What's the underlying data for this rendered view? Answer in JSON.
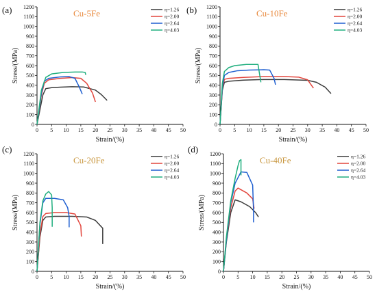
{
  "colors": {
    "eta_1_26": "#3a3a3a",
    "eta_2_00": "#e2453c",
    "eta_2_64": "#1f5fd0",
    "eta_4_03": "#1fae7e",
    "title_orange": "#e8873a",
    "title_tan": "#c8963e"
  },
  "chart_data": [
    {
      "type": "line",
      "panel_label": "(a)",
      "title": "Cu-5Fe",
      "title_color": "#e8873a",
      "xlabel": "Strain/(%)",
      "ylabel": "Stress/(MPa)",
      "xlim": [
        0,
        50
      ],
      "ylim": [
        0,
        1200
      ],
      "xticks": [
        0,
        5,
        10,
        15,
        20,
        25,
        30,
        35,
        40,
        45,
        50
      ],
      "yticks": [
        0,
        100,
        200,
        300,
        400,
        500,
        600,
        700,
        800,
        900,
        1000,
        1100,
        1200
      ],
      "legend": "top-right",
      "series": [
        {
          "name": "η=1.26",
          "color": "#3a3a3a",
          "x": [
            0,
            2,
            3,
            5,
            8,
            12,
            16,
            20,
            22,
            24
          ],
          "y": [
            0,
            300,
            365,
            375,
            380,
            385,
            382,
            350,
            305,
            245
          ]
        },
        {
          "name": "η=2.00",
          "color": "#e2453c",
          "x": [
            0,
            1.5,
            2.5,
            4,
            8,
            12,
            15,
            17,
            19,
            20
          ],
          "y": [
            0,
            300,
            420,
            455,
            470,
            478,
            470,
            420,
            320,
            230
          ]
        },
        {
          "name": "η=2.64",
          "color": "#1f5fd0",
          "x": [
            0,
            1.5,
            2.5,
            4,
            8,
            11,
            13,
            14.5,
            15.5
          ],
          "y": [
            0,
            320,
            440,
            470,
            485,
            488,
            470,
            380,
            310
          ]
        },
        {
          "name": "η=4.03",
          "color": "#1fae7e",
          "x": [
            0,
            1.5,
            3,
            5,
            9,
            13,
            15.5,
            16.5,
            16.7
          ],
          "y": [
            0,
            350,
            480,
            515,
            530,
            535,
            535,
            530,
            505
          ]
        }
      ]
    },
    {
      "type": "line",
      "panel_label": "(b)",
      "title": "Cu-10Fe",
      "title_color": "#e8873a",
      "xlabel": "Strain/(%)",
      "ylabel": "Stress/(MPa)",
      "xlim": [
        0,
        50
      ],
      "ylim": [
        0,
        1200
      ],
      "xticks": [
        0,
        5,
        10,
        15,
        20,
        25,
        30,
        35,
        40,
        45,
        50
      ],
      "yticks": [
        0,
        100,
        200,
        300,
        400,
        500,
        600,
        700,
        800,
        900,
        1000,
        1100,
        1200
      ],
      "legend": "top-right",
      "series": [
        {
          "name": "η=1.26",
          "color": "#3a3a3a",
          "x": [
            0,
            0.8,
            1.5,
            3,
            8,
            15,
            22,
            30,
            33,
            36,
            38
          ],
          "y": [
            0,
            350,
            430,
            440,
            452,
            458,
            458,
            450,
            430,
            380,
            315
          ]
        },
        {
          "name": "η=2.00",
          "color": "#e2453c",
          "x": [
            0,
            0.8,
            1.5,
            3,
            8,
            15,
            22,
            27,
            30,
            32
          ],
          "y": [
            0,
            370,
            460,
            470,
            480,
            488,
            488,
            482,
            455,
            370
          ]
        },
        {
          "name": "η=2.64",
          "color": "#1f5fd0",
          "x": [
            0,
            0.8,
            1.5,
            3,
            6,
            10,
            15,
            17,
            18.5,
            19
          ],
          "y": [
            0,
            380,
            500,
            530,
            548,
            555,
            558,
            555,
            470,
            405
          ]
        },
        {
          "name": "η=4.03",
          "color": "#1fae7e",
          "x": [
            0,
            0.8,
            1.5,
            3,
            5,
            9,
            13,
            14
          ],
          "y": [
            0,
            420,
            540,
            580,
            600,
            612,
            612,
            430
          ]
        }
      ]
    },
    {
      "type": "line",
      "panel_label": "(c)",
      "title": "Cu-20Fe",
      "title_color": "#c8963e",
      "xlabel": "Strain/(%)",
      "ylabel": "Stress/(MPa)",
      "xlim": [
        0,
        50
      ],
      "ylim": [
        0,
        1200
      ],
      "xticks": [
        0,
        5,
        10,
        15,
        20,
        25,
        30,
        35,
        40,
        45,
        50
      ],
      "yticks": [
        0,
        100,
        200,
        300,
        400,
        500,
        600,
        700,
        800,
        900,
        1000,
        1100,
        1200
      ],
      "legend": "top-right",
      "series": [
        {
          "name": "η=1.26",
          "color": "#3a3a3a",
          "x": [
            0,
            1,
            2,
            3,
            6,
            12,
            17,
            20,
            22.5,
            22.5
          ],
          "y": [
            0,
            350,
            520,
            555,
            562,
            562,
            555,
            520,
            440,
            280
          ]
        },
        {
          "name": "η=2.00",
          "color": "#e2453c",
          "x": [
            0,
            1,
            2,
            3,
            6,
            10,
            13,
            15,
            15.2
          ],
          "y": [
            0,
            380,
            560,
            590,
            600,
            600,
            585,
            465,
            355
          ]
        },
        {
          "name": "η=2.64",
          "color": "#1f5fd0",
          "x": [
            0,
            1,
            2,
            3,
            6,
            9,
            10.5,
            11,
            11
          ],
          "y": [
            0,
            480,
            700,
            745,
            745,
            730,
            650,
            560,
            450
          ]
        },
        {
          "name": "η=4.03",
          "color": "#1fae7e",
          "x": [
            0,
            1,
            2,
            3,
            4,
            5,
            5.2,
            5.2
          ],
          "y": [
            0,
            500,
            720,
            790,
            815,
            780,
            650,
            455
          ]
        }
      ]
    },
    {
      "type": "line",
      "panel_label": "(d)",
      "title": "Cu-40Fe",
      "title_color": "#c8963e",
      "xlabel": "Strain/(%)",
      "ylabel": "Stress/(MPa)",
      "xlim": [
        0,
        50
      ],
      "ylim": [
        0,
        1200
      ],
      "xticks": [
        0,
        5,
        10,
        15,
        20,
        25,
        30,
        35,
        40,
        45,
        50
      ],
      "yticks": [
        0,
        100,
        200,
        300,
        400,
        500,
        600,
        700,
        800,
        900,
        1000,
        1100,
        1200
      ],
      "legend": "top-right",
      "series": [
        {
          "name": "η=1.26",
          "color": "#3a3a3a",
          "x": [
            0,
            1,
            2.5,
            4,
            6,
            9,
            11,
            12
          ],
          "y": [
            0,
            300,
            600,
            730,
            710,
            660,
            600,
            555
          ]
        },
        {
          "name": "η=2.00",
          "color": "#e2453c",
          "x": [
            0,
            1,
            2.5,
            4,
            5,
            8,
            10,
            10.5
          ],
          "y": [
            0,
            320,
            650,
            820,
            850,
            800,
            740,
            640
          ]
        },
        {
          "name": "η=2.64",
          "color": "#1f5fd0",
          "x": [
            0,
            1,
            2.5,
            4,
            6,
            8,
            10,
            10.3,
            10.3
          ],
          "y": [
            0,
            320,
            700,
            900,
            1015,
            1010,
            880,
            620,
            500
          ]
        },
        {
          "name": "η=4.03",
          "color": "#1fae7e",
          "x": [
            0,
            1,
            2.5,
            4,
            5,
            5.5,
            6,
            6
          ],
          "y": [
            0,
            350,
            720,
            950,
            1080,
            1130,
            1140,
            980
          ]
        }
      ]
    }
  ]
}
